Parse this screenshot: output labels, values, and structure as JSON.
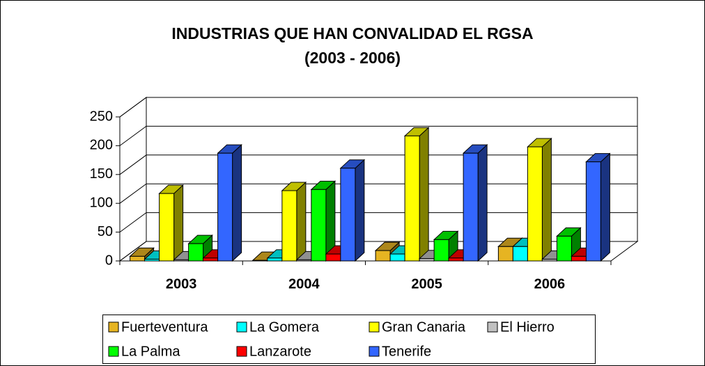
{
  "chart_data": {
    "type": "bar3d",
    "title": "INDUSTRIAS QUE HAN CONVALIDAD EL RGSA",
    "subtitle": "(2003 - 2006)",
    "categories": [
      "2003",
      "2004",
      "2005",
      "2006"
    ],
    "series": [
      {
        "name": "Fuerteventura",
        "color": "#e6b422",
        "values": [
          8,
          1,
          18,
          25
        ]
      },
      {
        "name": "La Gomera",
        "color": "#00ffff",
        "values": [
          3,
          5,
          12,
          25
        ]
      },
      {
        "name": "Gran Canaria",
        "color": "#ffff00",
        "values": [
          117,
          122,
          217,
          198
        ]
      },
      {
        "name": "El Hierro",
        "color": "#c0c0c0",
        "values": [
          2,
          2,
          4,
          3
        ]
      },
      {
        "name": "La Palma",
        "color": "#00ff00",
        "values": [
          30,
          124,
          37,
          43
        ]
      },
      {
        "name": "Lanzarote",
        "color": "#ff0000",
        "values": [
          5,
          12,
          5,
          8
        ]
      },
      {
        "name": "Tenerife",
        "color": "#3366ff",
        "values": [
          187,
          161,
          187,
          172
        ]
      }
    ],
    "ylim": [
      0,
      250
    ],
    "yticks": [
      0,
      50,
      100,
      150,
      200,
      250
    ],
    "grid": true
  }
}
